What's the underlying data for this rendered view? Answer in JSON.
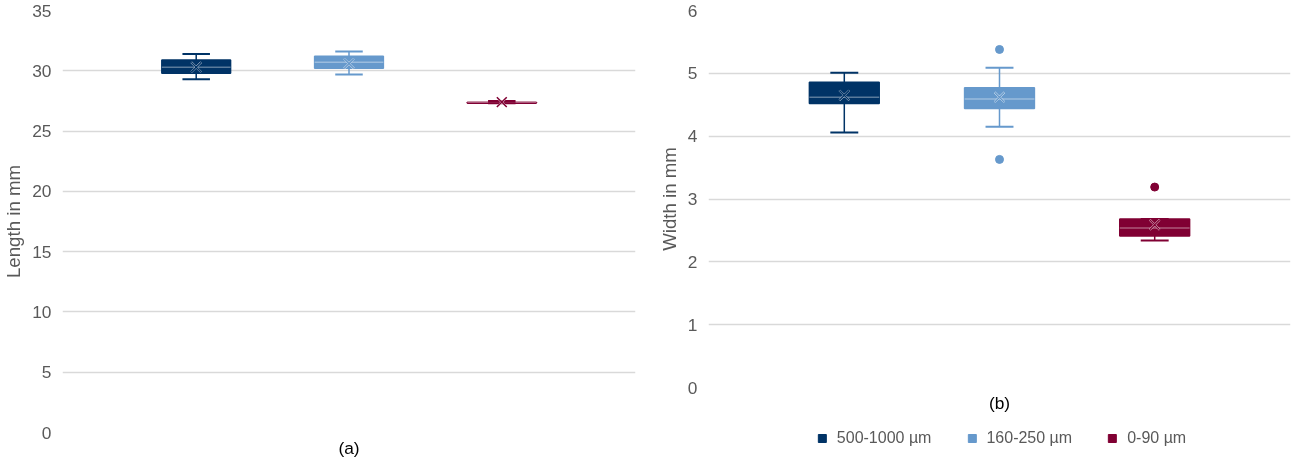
{
  "chart_data": [
    {
      "type": "box",
      "xlabel": "(a)",
      "ylabel": "Length in mm",
      "categories": [
        null
      ],
      "ylim": [
        0,
        35
      ],
      "yticks": [
        0,
        5,
        10,
        15,
        20,
        25,
        30,
        35
      ],
      "grid": "y",
      "tick_labels": "y",
      "marker": "cross",
      "series": [
        {
          "color": "#003366",
          "boxes": [
            {
              "low": 29.3,
              "q1": 29.8,
              "median": 30.3,
              "q3": 30.9,
              "high": 31.4,
              "mean": 30.3
            }
          ]
        },
        {
          "color": "#6699cc",
          "boxes": [
            {
              "low": 29.7,
              "q1": 30.2,
              "median": 30.7,
              "q3": 31.2,
              "high": 31.6,
              "mean": 30.6
            }
          ]
        },
        {
          "color": "#800033",
          "boxes": [
            {
              "low": 27.3,
              "q1": 27.3,
              "median": 27.4,
              "q3": 27.4,
              "high": 27.5,
              "mean": 27.4
            }
          ]
        }
      ]
    },
    {
      "type": "box",
      "xlabel": "(b)",
      "ylabel": "Width in mm",
      "categories": [
        null
      ],
      "ylim": [
        0,
        6
      ],
      "yticks": [
        0,
        1,
        2,
        3,
        4,
        5,
        6
      ],
      "grid": "y",
      "legend": "bottom",
      "tick_labels": "y",
      "marker": "cross",
      "series": [
        {
          "name": "500-1000 µm",
          "color": "#003366",
          "boxes": [
            {
              "low": 4.06,
              "q1": 4.52,
              "median": 4.62,
              "q3": 4.86,
              "high": 5.01,
              "mean": 4.65
            }
          ]
        },
        {
          "name": "160-250 µm",
          "color": "#6699cc",
          "boxes": [
            {
              "low": 4.15,
              "q1": 4.44,
              "median": 4.59,
              "q3": 4.77,
              "high": 5.09,
              "mean": 4.62,
              "outliers": [
                5.38,
                3.63
              ]
            }
          ]
        },
        {
          "name": "0-90 µm",
          "color": "#800033",
          "boxes": [
            {
              "low": 2.34,
              "q1": 2.41,
              "median": 2.54,
              "q3": 2.68,
              "high": 2.68,
              "mean": 2.59,
              "outliers": [
                3.19
              ]
            }
          ]
        }
      ]
    }
  ]
}
